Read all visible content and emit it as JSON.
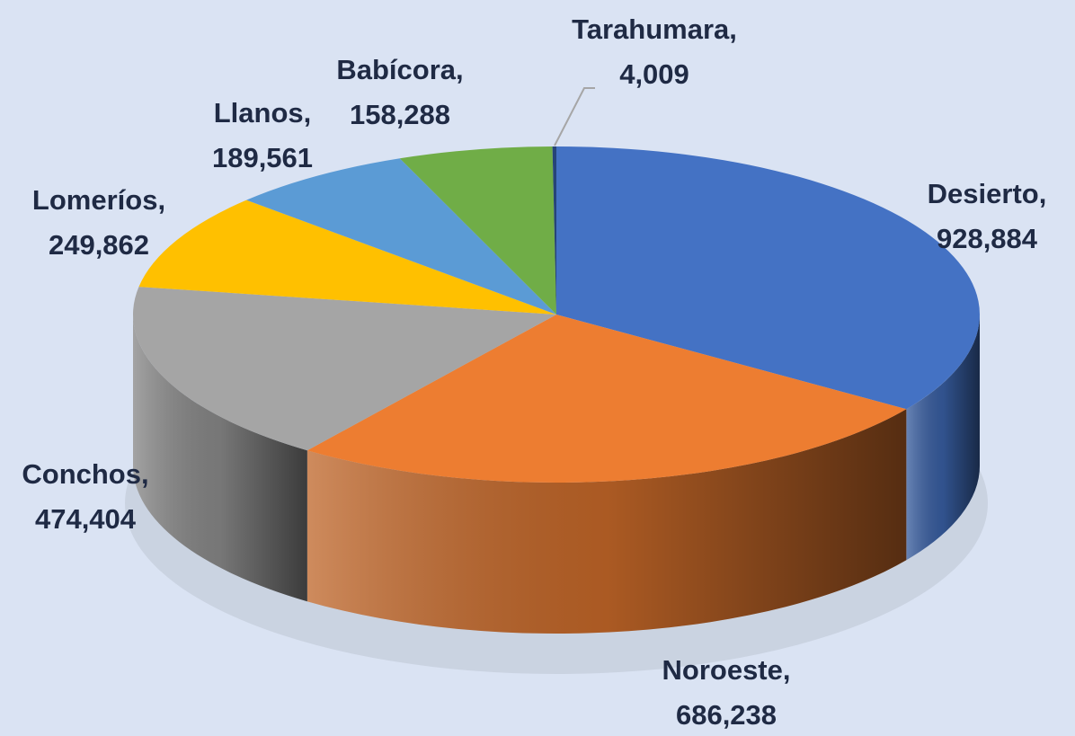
{
  "chart_data": {
    "type": "pie",
    "categories": [
      "Desierto,",
      "Noroeste,",
      "Conchos,",
      "Lomeríos,",
      "Llanos,",
      "Babícora,",
      "Tarahumara,"
    ],
    "values": [
      928884,
      686238,
      474404,
      249862,
      189561,
      158288,
      4009
    ],
    "value_labels": [
      "928,884",
      "686,238",
      "474,404",
      "249,862",
      "189,561",
      "158,288",
      "4,009"
    ],
    "colors": [
      "#4472c4",
      "#ed7d31",
      "#a5a5a5",
      "#ffc000",
      "#5b9bd5",
      "#70ad47",
      "#264478"
    ]
  }
}
